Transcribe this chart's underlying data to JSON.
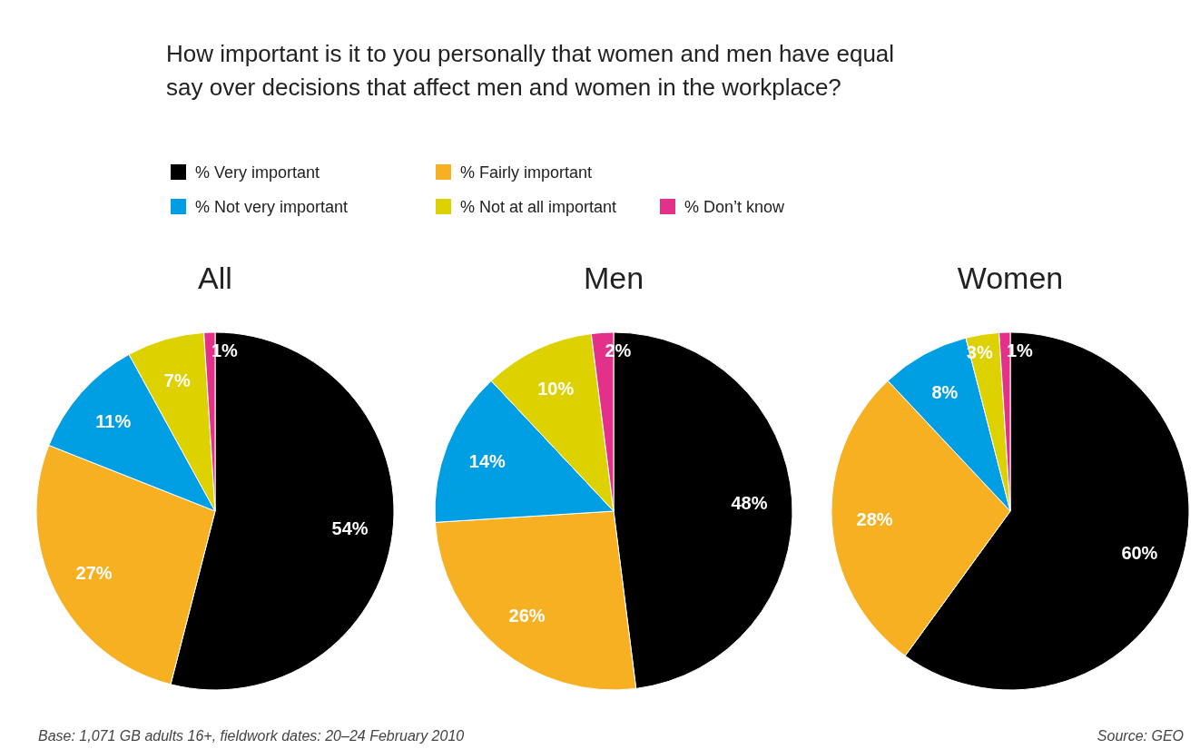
{
  "chart_data": [
    {
      "type": "other",
      "title": "How important is it to you personally that women and men have equal say over decisions that affect men and women in the workplace?",
      "annotations": [
        "Base: 1,071 GB adults 16+, fieldwork dates: 20–24 February 2010",
        "Source: GEO"
      ]
    },
    {
      "type": "pie",
      "title": "All",
      "categories": [
        "% Very important",
        "% Fairly important",
        "% Not very important",
        "% Not at all important",
        "% Don’t know"
      ],
      "values": [
        54,
        27,
        11,
        7,
        1
      ],
      "value_labels": [
        "54%",
        "27%",
        "11%",
        "7%",
        "1%"
      ],
      "colors": [
        "#000000",
        "#f7b021",
        "#009fe3",
        "#ddd200",
        "#e3318a"
      ],
      "legend": "top"
    },
    {
      "type": "pie",
      "title": "Men",
      "categories": [
        null,
        null,
        null,
        null,
        null
      ],
      "values": [
        48,
        26,
        14,
        10,
        2
      ],
      "value_labels": [
        "48%",
        "26%",
        "14%",
        "10%",
        "2%"
      ],
      "colors": [
        "#000000",
        "#f7b021",
        "#009fe3",
        "#ddd200",
        "#e3318a"
      ]
    },
    {
      "type": "pie",
      "title": "Women",
      "categories": [
        null,
        null,
        null,
        null,
        null
      ],
      "values": [
        60,
        28,
        8,
        3,
        1
      ],
      "value_labels": [
        "60%",
        "28%",
        "8%",
        "3%",
        "1%"
      ],
      "colors": [
        "#000000",
        "#f7b021",
        "#009fe3",
        "#ddd200",
        "#e3318a"
      ]
    }
  ]
}
